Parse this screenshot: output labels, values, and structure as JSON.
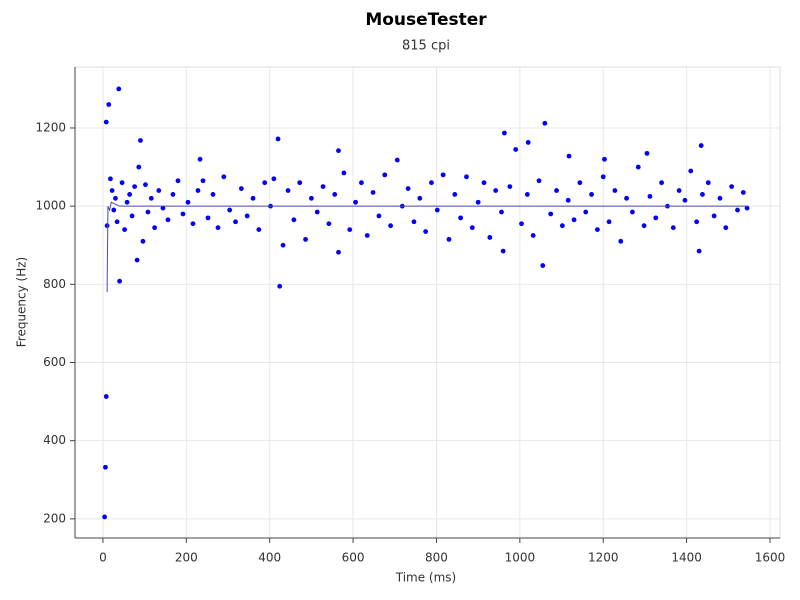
{
  "chart_data": {
    "type": "scatter",
    "title": "MouseTester",
    "subtitle": "815 cpi",
    "x_label": "Time (ms)",
    "y_label": "Frequency (Hz)",
    "xlim": [
      -67,
      1624
    ],
    "ylim": [
      151,
      1356
    ],
    "xticks": [
      0,
      200,
      400,
      600,
      800,
      1000,
      1200,
      1400,
      1600
    ],
    "yticks": [
      200,
      400,
      600,
      800,
      1000,
      1200
    ],
    "grid": true,
    "series": [
      {
        "type": "scatter",
        "color": "#0000ff",
        "x": [
          4,
          6,
          8,
          8,
          10,
          14,
          18,
          22,
          26,
          30,
          34,
          38,
          40,
          46,
          52,
          58,
          64,
          70,
          76,
          82,
          86,
          90,
          96,
          102,
          108,
          116,
          124,
          134,
          144,
          156,
          168,
          180,
          192,
          204,
          216,
          228,
          233,
          240,
          252,
          264,
          276,
          290,
          304,
          318,
          332,
          346,
          360,
          374,
          388,
          402,
          410,
          420,
          424,
          432,
          444,
          458,
          472,
          486,
          500,
          514,
          528,
          542,
          556,
          565,
          565,
          578,
          592,
          606,
          620,
          634,
          648,
          662,
          676,
          690,
          706,
          718,
          732,
          746,
          760,
          774,
          788,
          802,
          816,
          830,
          844,
          858,
          872,
          886,
          900,
          914,
          928,
          942,
          956,
          960,
          963,
          976,
          990,
          1004,
          1018,
          1020,
          1032,
          1046,
          1055,
          1060,
          1074,
          1088,
          1102,
          1116,
          1118,
          1130,
          1144,
          1158,
          1172,
          1186,
          1200,
          1203,
          1214,
          1228,
          1242,
          1256,
          1270,
          1284,
          1298,
          1305,
          1312,
          1326,
          1340,
          1354,
          1368,
          1382,
          1396,
          1410,
          1424,
          1430,
          1435,
          1438,
          1452,
          1466,
          1480,
          1494,
          1508,
          1522,
          1536,
          1545
        ],
        "values": [
          205,
          332,
          513,
          1215,
          950,
          1260,
          1070,
          1040,
          990,
          1020,
          960,
          1300,
          808,
          1060,
          940,
          1010,
          1030,
          975,
          1050,
          862,
          1100,
          1168,
          910,
          1055,
          985,
          1020,
          945,
          1040,
          995,
          965,
          1030,
          1065,
          980,
          1010,
          955,
          1040,
          1120,
          1065,
          970,
          1030,
          945,
          1075,
          990,
          960,
          1045,
          975,
          1020,
          940,
          1060,
          1000,
          1070,
          1172,
          795,
          900,
          1040,
          965,
          1060,
          915,
          1020,
          985,
          1050,
          955,
          1030,
          1142,
          882,
          1085,
          940,
          1010,
          1060,
          925,
          1035,
          975,
          1080,
          950,
          1118,
          1000,
          1045,
          960,
          1020,
          935,
          1060,
          990,
          1080,
          915,
          1030,
          970,
          1075,
          945,
          1010,
          1060,
          920,
          1040,
          985,
          885,
          1187,
          1050,
          1145,
          955,
          1030,
          1163,
          925,
          1065,
          848,
          1212,
          980,
          1040,
          950,
          1015,
          1128,
          965,
          1060,
          985,
          1030,
          940,
          1075,
          1120,
          960,
          1040,
          910,
          1020,
          985,
          1100,
          950,
          1135,
          1025,
          970,
          1060,
          1000,
          945,
          1040,
          1015,
          1090,
          960,
          885,
          1155,
          1030,
          1060,
          975,
          1020,
          945,
          1050,
          990,
          1035,
          995
        ]
      },
      {
        "type": "line",
        "color": "#4b4bb0",
        "x": [
          10,
          12,
          16,
          20,
          40,
          80,
          120,
          200,
          400,
          800,
          1200,
          1545
        ],
        "values": [
          780,
          1000,
          990,
          1010,
          1000,
          1000,
          1000,
          1000,
          1000,
          1000,
          1000,
          1000
        ]
      }
    ]
  }
}
